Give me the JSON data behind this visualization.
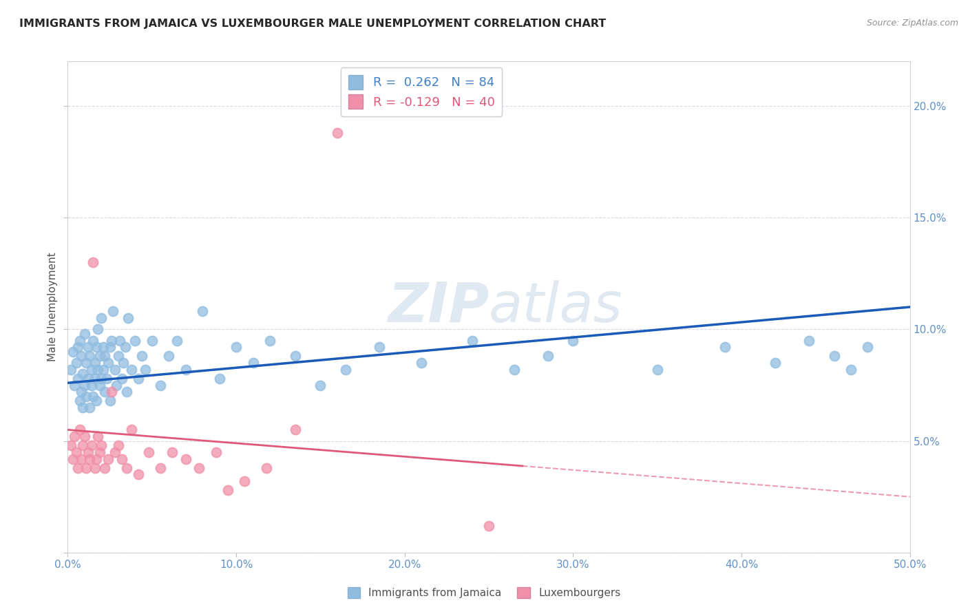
{
  "title": "IMMIGRANTS FROM JAMAICA VS LUXEMBOURGER MALE UNEMPLOYMENT CORRELATION CHART",
  "source": "Source: ZipAtlas.com",
  "ylabel": "Male Unemployment",
  "watermark_left": "ZIP",
  "watermark_right": "atlas",
  "legend_entries": [
    {
      "label": "R =  0.262   N = 84",
      "color": "#a8c8e8"
    },
    {
      "label": "R = -0.129   N = 40",
      "color": "#f4a0b5"
    }
  ],
  "legend_labels": [
    "Immigrants from Jamaica",
    "Luxembourgers"
  ],
  "xlim": [
    0.0,
    0.5
  ],
  "ylim": [
    0.0,
    0.22
  ],
  "xticks": [
    0.0,
    0.1,
    0.2,
    0.3,
    0.4,
    0.5
  ],
  "xticklabels": [
    "0.0%",
    "10.0%",
    "20.0%",
    "30.0%",
    "40.0%",
    "50.0%"
  ],
  "yticks_right": [
    0.05,
    0.1,
    0.15,
    0.2
  ],
  "yticklabels_right": [
    "5.0%",
    "10.0%",
    "15.0%",
    "20.0%"
  ],
  "color_jamaica": "#90bce0",
  "color_luxembourger": "#f090a8",
  "trend_jamaica_color": "#1a5ab8",
  "trend_luxembourger_color": "#e05878",
  "background_color": "#ffffff",
  "grid_color": "#d8d8e8",
  "jamaica_x": [
    0.002,
    0.003,
    0.004,
    0.005,
    0.006,
    0.006,
    0.007,
    0.007,
    0.008,
    0.008,
    0.009,
    0.009,
    0.01,
    0.01,
    0.011,
    0.011,
    0.012,
    0.012,
    0.013,
    0.013,
    0.014,
    0.014,
    0.015,
    0.015,
    0.016,
    0.016,
    0.017,
    0.017,
    0.018,
    0.018,
    0.019,
    0.019,
    0.02,
    0.02,
    0.021,
    0.021,
    0.022,
    0.022,
    0.023,
    0.024,
    0.025,
    0.025,
    0.026,
    0.027,
    0.028,
    0.029,
    0.03,
    0.031,
    0.032,
    0.033,
    0.034,
    0.035,
    0.036,
    0.038,
    0.04,
    0.042,
    0.044,
    0.046,
    0.05,
    0.055,
    0.06,
    0.065,
    0.07,
    0.08,
    0.09,
    0.1,
    0.11,
    0.12,
    0.135,
    0.15,
    0.165,
    0.185,
    0.21,
    0.24,
    0.265,
    0.285,
    0.3,
    0.35,
    0.39,
    0.42,
    0.44,
    0.455,
    0.465,
    0.475
  ],
  "jamaica_y": [
    0.082,
    0.09,
    0.075,
    0.085,
    0.078,
    0.092,
    0.068,
    0.095,
    0.072,
    0.088,
    0.065,
    0.08,
    0.075,
    0.098,
    0.07,
    0.085,
    0.078,
    0.092,
    0.065,
    0.088,
    0.075,
    0.082,
    0.07,
    0.095,
    0.078,
    0.085,
    0.092,
    0.068,
    0.1,
    0.082,
    0.088,
    0.075,
    0.078,
    0.105,
    0.082,
    0.092,
    0.088,
    0.072,
    0.078,
    0.085,
    0.092,
    0.068,
    0.095,
    0.108,
    0.082,
    0.075,
    0.088,
    0.095,
    0.078,
    0.085,
    0.092,
    0.072,
    0.105,
    0.082,
    0.095,
    0.078,
    0.088,
    0.082,
    0.095,
    0.075,
    0.088,
    0.095,
    0.082,
    0.108,
    0.078,
    0.092,
    0.085,
    0.095,
    0.088,
    0.075,
    0.082,
    0.092,
    0.085,
    0.095,
    0.082,
    0.088,
    0.095,
    0.082,
    0.092,
    0.085,
    0.095,
    0.088,
    0.082,
    0.092
  ],
  "luxembourger_x": [
    0.002,
    0.003,
    0.004,
    0.005,
    0.006,
    0.007,
    0.008,
    0.009,
    0.01,
    0.011,
    0.012,
    0.013,
    0.014,
    0.015,
    0.016,
    0.017,
    0.018,
    0.019,
    0.02,
    0.022,
    0.024,
    0.026,
    0.028,
    0.03,
    0.032,
    0.035,
    0.038,
    0.042,
    0.048,
    0.055,
    0.062,
    0.07,
    0.078,
    0.088,
    0.095,
    0.105,
    0.118,
    0.135,
    0.16,
    0.25
  ],
  "luxembourger_y": [
    0.048,
    0.042,
    0.052,
    0.045,
    0.038,
    0.055,
    0.042,
    0.048,
    0.052,
    0.038,
    0.045,
    0.042,
    0.048,
    0.13,
    0.038,
    0.042,
    0.052,
    0.045,
    0.048,
    0.038,
    0.042,
    0.072,
    0.045,
    0.048,
    0.042,
    0.038,
    0.055,
    0.035,
    0.045,
    0.038,
    0.045,
    0.042,
    0.038,
    0.045,
    0.028,
    0.032,
    0.038,
    0.055,
    0.188,
    0.012
  ],
  "trend_jamaica_x0": 0.0,
  "trend_jamaica_x1": 0.5,
  "trend_jamaica_y0": 0.076,
  "trend_jamaica_y1": 0.11,
  "trend_lux_x0": 0.0,
  "trend_lux_x1": 0.5,
  "trend_lux_y0": 0.055,
  "trend_lux_y1": 0.025
}
